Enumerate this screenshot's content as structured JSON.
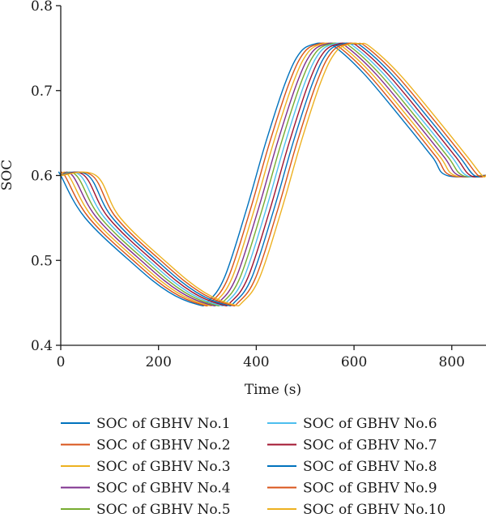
{
  "chart_data": {
    "type": "line",
    "xlabel": "Time (s)",
    "ylabel": "SOC",
    "xlim": [
      0,
      870
    ],
    "ylim": [
      0.4,
      0.8
    ],
    "xticks": [
      0,
      200,
      400,
      600,
      800
    ],
    "yticks": [
      0.4,
      0.5,
      0.6,
      0.7,
      0.8
    ],
    "xtick_labels": [
      "0",
      "200",
      "400",
      "600",
      "800"
    ],
    "ytick_labels": [
      "0.4",
      "0.5",
      "0.6",
      "0.7",
      "0.8"
    ],
    "grid": false,
    "legend_position": "bottom",
    "series": [
      {
        "name": "SOC of GBHV No.1",
        "color": "#0072BD",
        "points": [
          [
            0,
            0.6
          ],
          [
            0,
            0.6
          ],
          [
            50,
            0.55
          ],
          [
            150,
            0.495
          ],
          [
            220,
            0.463
          ],
          [
            280,
            0.448
          ],
          [
            300,
            0.451
          ],
          [
            335,
            0.48
          ],
          [
            380,
            0.56
          ],
          [
            420,
            0.64
          ],
          [
            460,
            0.71
          ],
          [
            490,
            0.745
          ],
          [
            520,
            0.755
          ],
          [
            540,
            0.755
          ],
          [
            560,
            0.752
          ],
          [
            620,
            0.72
          ],
          [
            700,
            0.665
          ],
          [
            760,
            0.622
          ],
          [
            790,
            0.6
          ],
          [
            870,
            0.6
          ]
        ]
      },
      {
        "name": "SOC of GBHV No.2",
        "color": "#D95319",
        "points": [
          [
            0,
            0.6
          ],
          [
            8,
            0.6
          ],
          [
            58,
            0.55
          ],
          [
            158,
            0.495
          ],
          [
            228,
            0.463
          ],
          [
            288,
            0.448
          ],
          [
            308,
            0.451
          ],
          [
            343,
            0.48
          ],
          [
            388,
            0.56
          ],
          [
            428,
            0.64
          ],
          [
            468,
            0.71
          ],
          [
            498,
            0.745
          ],
          [
            528,
            0.755
          ],
          [
            548,
            0.755
          ],
          [
            568,
            0.752
          ],
          [
            628,
            0.72
          ],
          [
            708,
            0.665
          ],
          [
            768,
            0.622
          ],
          [
            798,
            0.6
          ],
          [
            870,
            0.6
          ]
        ]
      },
      {
        "name": "SOC of GBHV No.3",
        "color": "#EDB120",
        "points": [
          [
            0,
            0.6
          ],
          [
            16,
            0.6
          ],
          [
            66,
            0.55
          ],
          [
            166,
            0.495
          ],
          [
            236,
            0.463
          ],
          [
            296,
            0.448
          ],
          [
            316,
            0.451
          ],
          [
            351,
            0.48
          ],
          [
            396,
            0.56
          ],
          [
            436,
            0.64
          ],
          [
            476,
            0.71
          ],
          [
            506,
            0.745
          ],
          [
            536,
            0.755
          ],
          [
            556,
            0.755
          ],
          [
            576,
            0.752
          ],
          [
            636,
            0.72
          ],
          [
            716,
            0.665
          ],
          [
            776,
            0.622
          ],
          [
            806,
            0.6
          ],
          [
            870,
            0.6
          ]
        ]
      },
      {
        "name": "SOC of GBHV No.4",
        "color": "#7E2F8E",
        "points": [
          [
            0,
            0.6
          ],
          [
            24,
            0.6
          ],
          [
            74,
            0.55
          ],
          [
            174,
            0.495
          ],
          [
            244,
            0.463
          ],
          [
            304,
            0.448
          ],
          [
            324,
            0.451
          ],
          [
            359,
            0.48
          ],
          [
            404,
            0.56
          ],
          [
            444,
            0.64
          ],
          [
            484,
            0.71
          ],
          [
            514,
            0.745
          ],
          [
            544,
            0.755
          ],
          [
            564,
            0.755
          ],
          [
            584,
            0.752
          ],
          [
            644,
            0.72
          ],
          [
            724,
            0.665
          ],
          [
            784,
            0.622
          ],
          [
            814,
            0.6
          ],
          [
            870,
            0.6
          ]
        ]
      },
      {
        "name": "SOC of GBHV No.5",
        "color": "#77AC30",
        "points": [
          [
            0,
            0.6
          ],
          [
            32,
            0.6
          ],
          [
            82,
            0.55
          ],
          [
            182,
            0.495
          ],
          [
            252,
            0.463
          ],
          [
            312,
            0.448
          ],
          [
            332,
            0.451
          ],
          [
            367,
            0.48
          ],
          [
            412,
            0.56
          ],
          [
            452,
            0.64
          ],
          [
            492,
            0.71
          ],
          [
            522,
            0.745
          ],
          [
            552,
            0.755
          ],
          [
            572,
            0.755
          ],
          [
            592,
            0.752
          ],
          [
            652,
            0.72
          ],
          [
            732,
            0.665
          ],
          [
            792,
            0.622
          ],
          [
            822,
            0.6
          ],
          [
            870,
            0.6
          ]
        ]
      },
      {
        "name": "SOC of GBHV No.6",
        "color": "#4DBEEE",
        "points": [
          [
            0,
            0.6
          ],
          [
            40,
            0.6
          ],
          [
            90,
            0.55
          ],
          [
            190,
            0.495
          ],
          [
            260,
            0.463
          ],
          [
            320,
            0.448
          ],
          [
            340,
            0.451
          ],
          [
            375,
            0.48
          ],
          [
            420,
            0.56
          ],
          [
            460,
            0.64
          ],
          [
            500,
            0.71
          ],
          [
            530,
            0.745
          ],
          [
            560,
            0.755
          ],
          [
            580,
            0.755
          ],
          [
            600,
            0.752
          ],
          [
            660,
            0.72
          ],
          [
            740,
            0.665
          ],
          [
            800,
            0.622
          ],
          [
            830,
            0.6
          ],
          [
            870,
            0.6
          ]
        ]
      },
      {
        "name": "SOC of GBHV No.7",
        "color": "#A2142F",
        "points": [
          [
            0,
            0.6
          ],
          [
            48,
            0.6
          ],
          [
            98,
            0.55
          ],
          [
            198,
            0.495
          ],
          [
            268,
            0.463
          ],
          [
            328,
            0.448
          ],
          [
            348,
            0.451
          ],
          [
            383,
            0.48
          ],
          [
            428,
            0.56
          ],
          [
            468,
            0.64
          ],
          [
            508,
            0.71
          ],
          [
            538,
            0.745
          ],
          [
            568,
            0.755
          ],
          [
            588,
            0.755
          ],
          [
            608,
            0.752
          ],
          [
            668,
            0.72
          ],
          [
            748,
            0.665
          ],
          [
            808,
            0.622
          ],
          [
            838,
            0.6
          ],
          [
            870,
            0.6
          ]
        ]
      },
      {
        "name": "SOC of GBHV No.8",
        "color": "#0072BD",
        "points": [
          [
            0,
            0.6
          ],
          [
            56,
            0.6
          ],
          [
            106,
            0.55
          ],
          [
            206,
            0.495
          ],
          [
            276,
            0.463
          ],
          [
            336,
            0.448
          ],
          [
            356,
            0.451
          ],
          [
            391,
            0.48
          ],
          [
            436,
            0.56
          ],
          [
            476,
            0.64
          ],
          [
            516,
            0.71
          ],
          [
            546,
            0.745
          ],
          [
            576,
            0.755
          ],
          [
            596,
            0.755
          ],
          [
            616,
            0.752
          ],
          [
            676,
            0.72
          ],
          [
            756,
            0.665
          ],
          [
            816,
            0.622
          ],
          [
            846,
            0.6
          ],
          [
            870,
            0.6
          ]
        ]
      },
      {
        "name": "SOC of GBHV No.9",
        "color": "#D95319",
        "points": [
          [
            0,
            0.6
          ],
          [
            64,
            0.6
          ],
          [
            114,
            0.55
          ],
          [
            214,
            0.495
          ],
          [
            284,
            0.463
          ],
          [
            344,
            0.448
          ],
          [
            364,
            0.451
          ],
          [
            399,
            0.48
          ],
          [
            444,
            0.56
          ],
          [
            484,
            0.64
          ],
          [
            524,
            0.71
          ],
          [
            554,
            0.745
          ],
          [
            584,
            0.755
          ],
          [
            604,
            0.755
          ],
          [
            624,
            0.752
          ],
          [
            684,
            0.72
          ],
          [
            764,
            0.665
          ],
          [
            824,
            0.622
          ],
          [
            854,
            0.6
          ],
          [
            870,
            0.6
          ]
        ]
      },
      {
        "name": "SOC of GBHV No.10",
        "color": "#EDB120",
        "points": [
          [
            0,
            0.6
          ],
          [
            72,
            0.6
          ],
          [
            122,
            0.55
          ],
          [
            222,
            0.495
          ],
          [
            292,
            0.463
          ],
          [
            352,
            0.448
          ],
          [
            372,
            0.451
          ],
          [
            407,
            0.48
          ],
          [
            452,
            0.56
          ],
          [
            492,
            0.64
          ],
          [
            532,
            0.71
          ],
          [
            562,
            0.745
          ],
          [
            592,
            0.755
          ],
          [
            612,
            0.755
          ],
          [
            632,
            0.752
          ],
          [
            692,
            0.72
          ],
          [
            772,
            0.665
          ],
          [
            832,
            0.622
          ],
          [
            862,
            0.6
          ],
          [
            870,
            0.6
          ]
        ]
      }
    ]
  }
}
